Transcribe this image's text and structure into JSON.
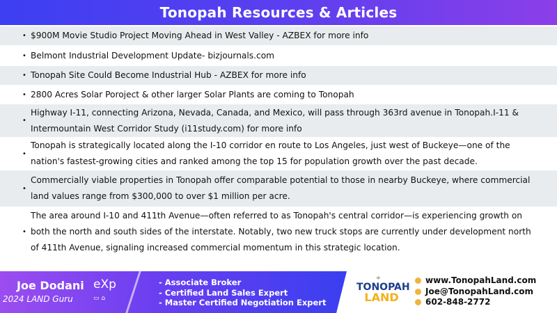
{
  "header": {
    "title": "Tonopah Resources & Articles"
  },
  "items": [
    "$900M Movie Studio Project Moving Ahead in West Valley - AZBEX for more info",
    "Belmont Industrial Development Update- bizjournals.com",
    "Tonopah Site Could Become Industrial Hub - AZBEX for more info",
    "2800 Acres Solar Poroject & other larger Solar Plants are coming to Tonopah",
    "Highway I-11, connecting Arizona, Nevada, Canada, and Mexico, will pass through 363rd avenue in Tonopah.I-11 & Intermountain West Corridor Study (i11study.com) for more info",
    "Tonopah is strategically located along the I-10 corridor en route to Los Angeles, just west of Buckeye—one of the nation's fastest-growing cities and ranked among the top 15 for population growth over the past decade.",
    "Commercially viable properties in Tonopah offer comparable potential to those in nearby Buckeye, where commercial land values range from $300,000 to over $1 million per acre.",
    "The area around I-10 and 411th Avenue—often referred to as Tonopah's central corridor—is experiencing growth on both the north and south sides of the interstate. Notably, two new truck stops are currently under development north of 411th Avenue, signaling increased commercial momentum in this strategic location."
  ],
  "bullet": "•",
  "footer": {
    "name": "Joe Dodani",
    "tagline": "2024 LAND Guru",
    "brokerage": "eXp",
    "brokerage_sub": "REALTY",
    "credentials": [
      "- Associate Broker",
      "- Certified Land Sales Expert",
      "- Master Certified Negotiation Expert"
    ],
    "logo_top": "TONOPAH",
    "logo_bottom": "LAND",
    "website": "www.TonopahLand.com",
    "email": "Joe@TonopahLand.com",
    "phone": "602-848-2772"
  },
  "colors": {
    "accent": "#5a3ff0",
    "row_alt": "#e9ecee",
    "logo_blue": "#1d3e8c",
    "logo_gold": "#f2b21b"
  }
}
